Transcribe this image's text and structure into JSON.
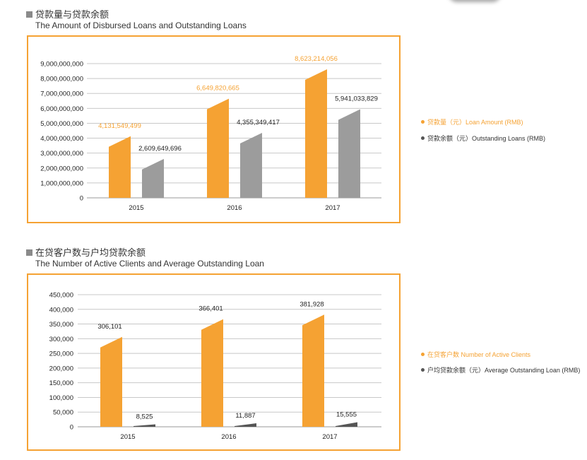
{
  "chart_data": [
    {
      "type": "bar",
      "title": "贷款量与贷款余额",
      "subtitle": "The Amount of Disbursed Loans and Outstanding Loans",
      "categories": [
        "2015",
        "2016",
        "2017"
      ],
      "ylim": [
        0,
        9000000000
      ],
      "yticks": [
        "0",
        "1,000,000,000",
        "2,000,000,000",
        "3,000,000,000",
        "4,000,000,000",
        "5,000,000,000",
        "6,000,000,000",
        "7,000,000,000",
        "8,000,000,000",
        "9,000,000,000"
      ],
      "grid": true,
      "legend_position": "right",
      "series": [
        {
          "name": "贷款量（元）Loan Amount (RMB)",
          "color": "#f5a233",
          "values": [
            4131549499,
            6649820665,
            8623214056
          ],
          "labels": [
            "4,131,549,499",
            "6,649,820,665",
            "8,623,214,056"
          ]
        },
        {
          "name": "贷款余额（元）Outstanding Loans (RMB)",
          "color": "#9c9c9c",
          "values": [
            2609649696,
            4355349417,
            5941033829
          ],
          "labels": [
            "2,609,649,696",
            "4,355,349,417",
            "5,941,033,829"
          ]
        }
      ]
    },
    {
      "type": "bar",
      "title": "在贷客户数与户均贷款余额",
      "subtitle": "The Number of Active Clients and Average Outstanding Loan",
      "categories": [
        "2015",
        "2016",
        "2017"
      ],
      "ylim": [
        0,
        450000
      ],
      "yticks": [
        "0",
        "50,000",
        "100,000",
        "150,000",
        "200,000",
        "250,000",
        "300,000",
        "350,000",
        "400,000",
        "450,000"
      ],
      "grid": true,
      "legend_position": "right",
      "series": [
        {
          "name": "在贷客户数 Number of Active Clients",
          "color": "#f5a233",
          "values": [
            306101,
            366401,
            381928
          ],
          "labels": [
            "306,101",
            "366,401",
            "381,928"
          ]
        },
        {
          "name": "户均贷款余额（元）Average Outstanding Loan (RMB)",
          "color": "#555555",
          "values": [
            8525,
            11887,
            15555
          ],
          "labels": [
            "8,525",
            "11,887",
            "15,555"
          ]
        }
      ]
    }
  ]
}
